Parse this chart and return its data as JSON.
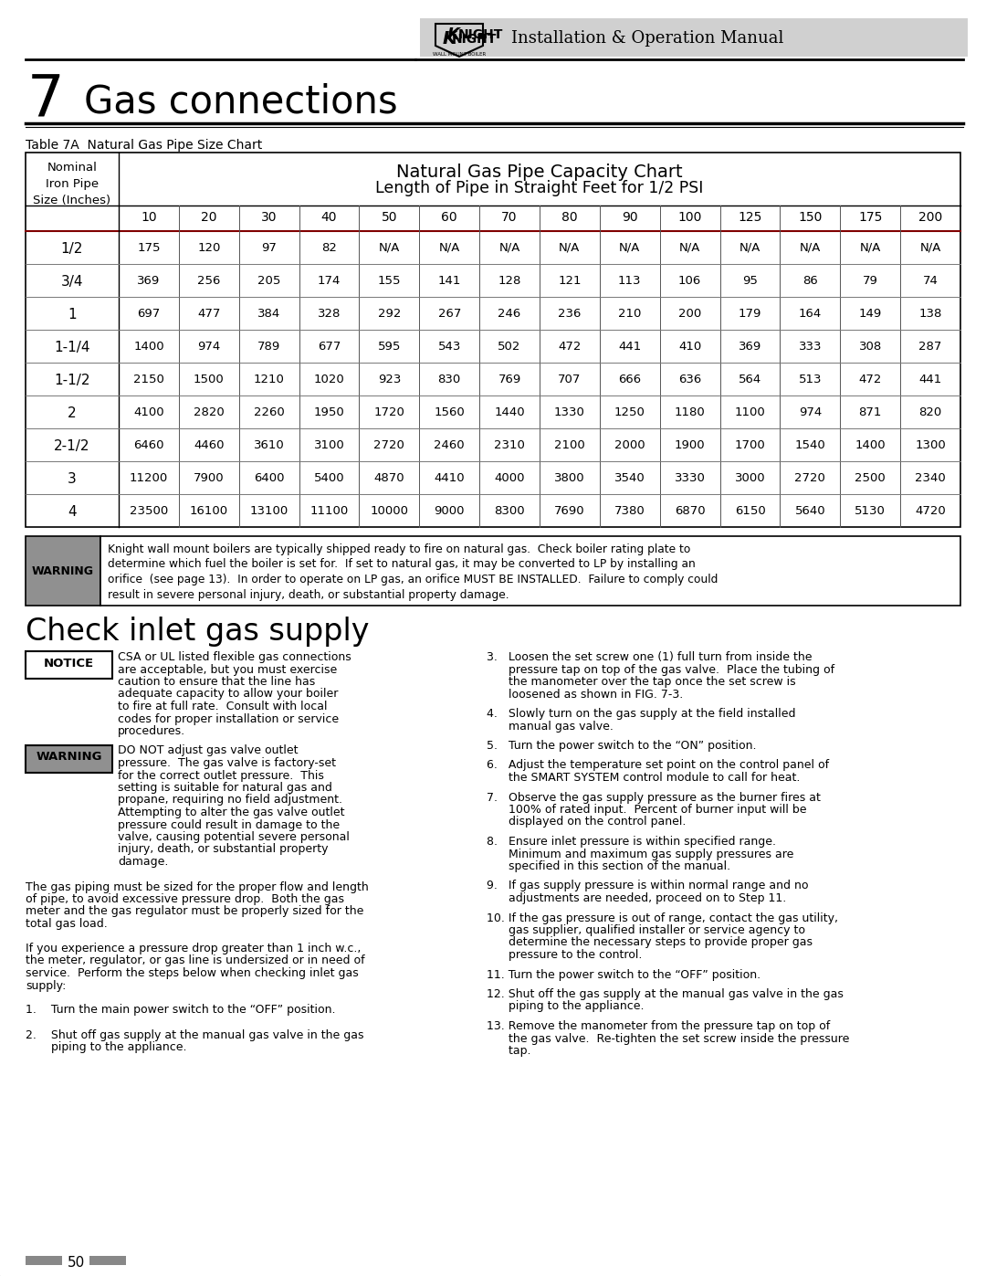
{
  "page_title": "Installation & Operation Manual",
  "section_number": "7",
  "section_title": "Gas connections",
  "table_label": "Table 7A  Natural Gas Pipe Size Chart",
  "table_header_line1": "Natural Gas Pipe Capacity Chart",
  "table_header_line2": "Length of Pipe in Straight Feet for 1/2 PSI",
  "col_header_label": "Nominal\nIron Pipe\nSize (Inches)",
  "col_lengths": [
    "10",
    "20",
    "30",
    "40",
    "50",
    "60",
    "70",
    "80",
    "90",
    "100",
    "125",
    "150",
    "175",
    "200"
  ],
  "pipe_sizes": [
    "1/2",
    "3/4",
    "1",
    "1-1/4",
    "1-1/2",
    "2",
    "2-1/2",
    "3",
    "4"
  ],
  "table_data": [
    [
      "175",
      "120",
      "97",
      "82",
      "N/A",
      "N/A",
      "N/A",
      "N/A",
      "N/A",
      "N/A",
      "N/A",
      "N/A",
      "N/A",
      "N/A"
    ],
    [
      "369",
      "256",
      "205",
      "174",
      "155",
      "141",
      "128",
      "121",
      "113",
      "106",
      "95",
      "86",
      "79",
      "74"
    ],
    [
      "697",
      "477",
      "384",
      "328",
      "292",
      "267",
      "246",
      "236",
      "210",
      "200",
      "179",
      "164",
      "149",
      "138"
    ],
    [
      "1400",
      "974",
      "789",
      "677",
      "595",
      "543",
      "502",
      "472",
      "441",
      "410",
      "369",
      "333",
      "308",
      "287"
    ],
    [
      "2150",
      "1500",
      "1210",
      "1020",
      "923",
      "830",
      "769",
      "707",
      "666",
      "636",
      "564",
      "513",
      "472",
      "441"
    ],
    [
      "4100",
      "2820",
      "2260",
      "1950",
      "1720",
      "1560",
      "1440",
      "1330",
      "1250",
      "1180",
      "1100",
      "974",
      "871",
      "820"
    ],
    [
      "6460",
      "4460",
      "3610",
      "3100",
      "2720",
      "2460",
      "2310",
      "2100",
      "2000",
      "1900",
      "1700",
      "1540",
      "1400",
      "1300"
    ],
    [
      "11200",
      "7900",
      "6400",
      "5400",
      "4870",
      "4410",
      "4000",
      "3800",
      "3540",
      "3330",
      "3000",
      "2720",
      "2500",
      "2340"
    ],
    [
      "23500",
      "16100",
      "13100",
      "11100",
      "10000",
      "9000",
      "8300",
      "7690",
      "7380",
      "6870",
      "6150",
      "5640",
      "5130",
      "4720"
    ]
  ],
  "warning1_lines": [
    "Knight wall mount boilers are typically shipped ready to fire on natural gas.  Check boiler rating plate to",
    "determine which fuel the boiler is set for.  If set to natural gas, it may be converted to LP by installing an",
    "orifice  (see page 13).  In order to operate on LP gas, an orifice MUST BE INSTALLED.  Failure to comply could",
    "result in severe personal injury, death, or substantial property damage."
  ],
  "check_inlet_title": "Check inlet gas supply",
  "notice_lines": [
    "CSA or UL listed flexible gas connections",
    "are acceptable, but you must exercise",
    "caution to ensure that the line has",
    "adequate capacity to allow your boiler",
    "to fire at full rate.  Consult with local",
    "codes for proper installation or service",
    "procedures."
  ],
  "warning2_lines": [
    "DO NOT adjust gas valve outlet",
    "pressure.  The gas valve is factory-set",
    "for the correct outlet pressure.  This",
    "setting is suitable for natural gas and",
    "propane, requiring no field adjustment.",
    "Attempting to alter the gas valve outlet",
    "pressure could result in damage to the",
    "valve, causing potential severe personal",
    "injury, death, or substantial property",
    "damage."
  ],
  "left_body_lines": [
    "The gas piping must be sized for the proper flow and length",
    "of pipe, to avoid excessive pressure drop.  Both the gas",
    "meter and the gas regulator must be properly sized for the",
    "total gas load.",
    "",
    "If you experience a pressure drop greater than 1 inch w.c.,",
    "the meter, regulator, or gas line is undersized or in need of",
    "service.  Perform the steps below when checking inlet gas",
    "supply:",
    "",
    "1.    Turn the main power switch to the “OFF” position.",
    "",
    "2.    Shut off gas supply at the manual gas valve in the gas",
    "       piping to the appliance."
  ],
  "right_col_items": [
    [
      "3.   Loosen the set screw one (1) full turn from inside the",
      "pressure tap on top of the gas valve.  Place the tubing of",
      "the manometer over the tap once the set screw is",
      "loosened as shown in FIG. 7-3."
    ],
    [
      "4.   Slowly turn on the gas supply at the field installed",
      "manual gas valve."
    ],
    [
      "5.   Turn the power switch to the “ON” position."
    ],
    [
      "6.   Adjust the temperature set point on the control panel of",
      "the SMART SYSTEM control module to call for heat."
    ],
    [
      "7.   Observe the gas supply pressure as the burner fires at",
      "100% of rated input.  Percent of burner input will be",
      "displayed on the control panel."
    ],
    [
      "8.   Ensure inlet pressure is within specified range.",
      "Minimum and maximum gas supply pressures are",
      "specified in this section of the manual."
    ],
    [
      "9.   If gas supply pressure is within normal range and no",
      "adjustments are needed, proceed on to Step 11."
    ],
    [
      "10. If the gas pressure is out of range, contact the gas utility,",
      "gas supplier, qualified installer or service agency to",
      "determine the necessary steps to provide proper gas",
      "pressure to the control."
    ],
    [
      "11. Turn the power switch to the “OFF” position."
    ],
    [
      "12. Shut off the gas supply at the manual gas valve in the gas",
      "piping to the appliance."
    ],
    [
      "13. Remove the manometer from the pressure tap on top of",
      "the gas valve.  Re-tighten the set screw inside the pressure",
      "tap."
    ]
  ],
  "page_number": "50",
  "header_bg_color": "#d0d0d0",
  "table_header_bg": "#c8c8c8",
  "warning_bg": "#909090",
  "bg_color": "#ffffff"
}
